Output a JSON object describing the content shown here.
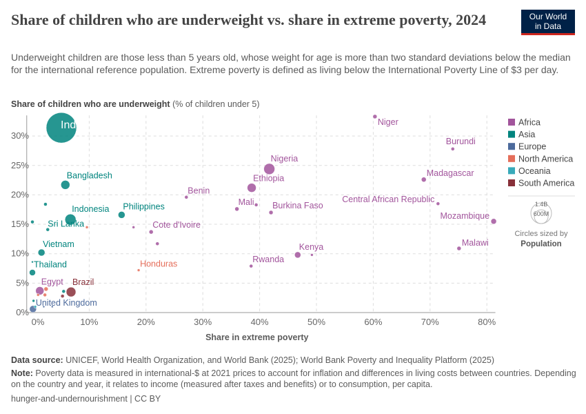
{
  "title": "Share of children who are underweight vs. share in extreme poverty, 2024",
  "subtitle": "Underweight children are those less than 5 years old, whose weight for age is more than two standard deviations below the median for the international reference population. Extreme poverty is defined as living below the International Poverty Line of $3 per day.",
  "logo": {
    "line1": "Our World",
    "line2": "in Data"
  },
  "ylabel_bold": "Share of children who are underweight",
  "ylabel_rest": " (% of children under 5)",
  "footer": {
    "source_label": "Data source:",
    "source": " UNICEF, World Health Organization, and World Bank (2025); World Bank Poverty and Inequality Platform (2025)",
    "note_label": "Note:",
    "note": " Poverty data is measured in international-$ at 2021 prices to account for inflation and differences in living costs between countries. Depending on the country and year, it relates to income (measured after taxes and benefits) or to consumption, per capita.",
    "license": "hunger-and-undernourishment | CC BY"
  },
  "chart_data": {
    "type": "scatter",
    "xlabel": "Share in extreme poverty",
    "ylabel": "Share of children who are underweight (% of children under 5)",
    "xlim": [
      -1,
      81.5
    ],
    "ylim": [
      0,
      33.5
    ],
    "xticks": [
      "0%",
      "10%",
      "20%",
      "30%",
      "40%",
      "50%",
      "60%",
      "70%",
      "80%"
    ],
    "yticks": [
      "0%",
      "5%",
      "10%",
      "15%",
      "20%",
      "25%",
      "30%"
    ],
    "grid": true,
    "legend_position": "right",
    "legend": [
      {
        "name": "Africa",
        "color": "#a2559c"
      },
      {
        "name": "Asia",
        "color": "#00847e"
      },
      {
        "name": "Europe",
        "color": "#4c6a9c"
      },
      {
        "name": "North America",
        "color": "#e56e5a"
      },
      {
        "name": "Oceania",
        "color": "#38aaba"
      },
      {
        "name": "South America",
        "color": "#883039"
      }
    ],
    "size_legend": {
      "large": "1.4B",
      "small": "600M",
      "caption": "Circles sized by",
      "variable": "Population"
    },
    "points": [
      {
        "label": "India",
        "region": "Asia",
        "x": 5.1,
        "y": 31.4,
        "r": 22
      },
      {
        "label": "Bangladesh",
        "region": "Asia",
        "x": 5.8,
        "y": 21.7,
        "r": 6.5
      },
      {
        "label": "Indonesia",
        "region": "Asia",
        "x": 6.7,
        "y": 15.8,
        "r": 8
      },
      {
        "label": "Philippines",
        "region": "Asia",
        "x": 15.7,
        "y": 16.6,
        "r": 5
      },
      {
        "label": "Sri Lanka",
        "region": "Asia",
        "x": 2.7,
        "y": 14.1,
        "r": 2.5
      },
      {
        "label": "Vietnam",
        "region": "Asia",
        "x": 1.6,
        "y": 10.2,
        "r": 5
      },
      {
        "label": "Thailand",
        "region": "Asia",
        "x": 0,
        "y": 6.8,
        "r": 4.5
      },
      {
        "label": "",
        "region": "Asia",
        "x": 2.3,
        "y": 18.4,
        "r": 2.5
      },
      {
        "label": "",
        "region": "Asia",
        "x": 0,
        "y": 15.4,
        "r": 2.5
      },
      {
        "label": "",
        "region": "Asia",
        "x": 0,
        "y": 8.6,
        "r": 1.5
      },
      {
        "label": "",
        "region": "Asia",
        "x": 5.5,
        "y": 3.6,
        "r": 2.5
      },
      {
        "label": "",
        "region": "Asia",
        "x": 0.2,
        "y": 2.0,
        "r": 2
      },
      {
        "label": "",
        "region": "North America",
        "x": 9.6,
        "y": 14.5,
        "r": 2
      },
      {
        "label": "Honduras",
        "region": "North America",
        "x": 18.7,
        "y": 7.2,
        "r": 2
      },
      {
        "label": "",
        "region": "North America",
        "x": 1.0,
        "y": 3.0,
        "r": 2
      },
      {
        "label": "",
        "region": "North America",
        "x": 2.2,
        "y": 3.0,
        "r": 2.5
      },
      {
        "label": "",
        "region": "North America",
        "x": 2.4,
        "y": 4.0,
        "r": 3
      },
      {
        "label": "Egypt",
        "region": "Africa",
        "x": 1.3,
        "y": 3.7,
        "r": 6
      },
      {
        "label": "Brazil",
        "region": "South America",
        "x": 6.8,
        "y": 3.5,
        "r": 7
      },
      {
        "label": "",
        "region": "South America",
        "x": 5.3,
        "y": 2.8,
        "r": 2.5
      },
      {
        "label": "United Kingdom",
        "region": "Europe",
        "x": 0.1,
        "y": 0.6,
        "r": 5
      },
      {
        "label": "",
        "region": "Europe",
        "x": 2.0,
        "y": 1.0,
        "r": 1.5
      },
      {
        "label": "",
        "region": "Europe",
        "x": 3.5,
        "y": 1.0,
        "r": 1.5
      },
      {
        "label": "",
        "region": "Oceania",
        "x": 0.5,
        "y": 1.0,
        "r": 2
      },
      {
        "label": "Nigeria",
        "region": "Africa",
        "x": 41.7,
        "y": 24.4,
        "r": 8
      },
      {
        "label": "Ethiopia",
        "region": "Africa",
        "x": 38.6,
        "y": 21.2,
        "r": 6.5
      },
      {
        "label": "Benin",
        "region": "Africa",
        "x": 27.1,
        "y": 19.6,
        "r": 2.5
      },
      {
        "label": "Mali",
        "region": "Africa",
        "x": 36.0,
        "y": 17.6,
        "r": 3
      },
      {
        "label": "",
        "region": "Africa",
        "x": 39.4,
        "y": 18.3,
        "r": 2.5
      },
      {
        "label": "Burkina Faso",
        "region": "Africa",
        "x": 42.0,
        "y": 17.0,
        "r": 3
      },
      {
        "label": "Cote d'Ivoire",
        "region": "Africa",
        "x": 20.9,
        "y": 13.7,
        "r": 3
      },
      {
        "label": "",
        "region": "Africa",
        "x": 22.0,
        "y": 11.7,
        "r": 2.5
      },
      {
        "label": "",
        "region": "Africa",
        "x": 17.8,
        "y": 14.5,
        "r": 2
      },
      {
        "label": "Rwanda",
        "region": "Africa",
        "x": 38.5,
        "y": 7.9,
        "r": 2.5
      },
      {
        "label": "Kenya",
        "region": "Africa",
        "x": 46.7,
        "y": 9.8,
        "r": 4.5
      },
      {
        "label": "",
        "region": "Africa",
        "x": 49.2,
        "y": 9.8,
        "r": 2
      },
      {
        "label": "Niger",
        "region": "Africa",
        "x": 60.3,
        "y": 33.3,
        "r": 3
      },
      {
        "label": "Burundi",
        "region": "Africa",
        "x": 74.0,
        "y": 27.8,
        "r": 2.5
      },
      {
        "label": "Madagascar",
        "region": "Africa",
        "x": 68.9,
        "y": 22.6,
        "r": 3.5
      },
      {
        "label": "Central African Republic",
        "region": "Africa",
        "x": 71.4,
        "y": 18.5,
        "r": 2.5
      },
      {
        "label": "Mozambique",
        "region": "Africa",
        "x": 81.2,
        "y": 15.5,
        "r": 4
      },
      {
        "label": "Malawi",
        "region": "Africa",
        "x": 75.1,
        "y": 10.9,
        "r": 3
      }
    ]
  }
}
